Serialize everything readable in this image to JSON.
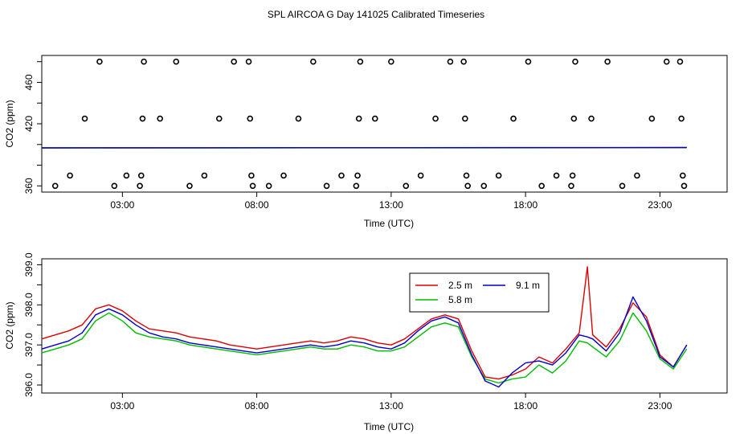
{
  "title": "SPL AIRCOA G  Day 141025  Calibrated Timeseries",
  "chart_data": [
    {
      "type": "scatter+line",
      "xlabel": "Time (UTC)",
      "ylabel": "CO2 (ppm)",
      "xlim": [
        0.0,
        25.5
      ],
      "ylim": [
        354,
        486
      ],
      "xticks": [
        3,
        8,
        13,
        18,
        23
      ],
      "xtick_labels": [
        "03:00",
        "08:00",
        "13:00",
        "18:00",
        "23:00"
      ],
      "yticks": [
        360,
        380,
        400,
        420,
        440,
        460,
        480
      ],
      "ytick_labels": [
        "360",
        "",
        "",
        "420",
        "",
        "460",
        ""
      ],
      "points": [
        {
          "x": 0.5,
          "y": 360
        },
        {
          "x": 1.05,
          "y": 370
        },
        {
          "x": 1.6,
          "y": 425
        },
        {
          "x": 2.15,
          "y": 480
        },
        {
          "x": 2.7,
          "y": 360
        },
        {
          "x": 3.15,
          "y": 370
        },
        {
          "x": 3.65,
          "y": 360
        },
        {
          "x": 3.7,
          "y": 370
        },
        {
          "x": 3.75,
          "y": 425
        },
        {
          "x": 3.8,
          "y": 480
        },
        {
          "x": 4.4,
          "y": 425
        },
        {
          "x": 5.0,
          "y": 480
        },
        {
          "x": 5.5,
          "y": 360
        },
        {
          "x": 6.05,
          "y": 370
        },
        {
          "x": 6.6,
          "y": 425
        },
        {
          "x": 7.15,
          "y": 480
        },
        {
          "x": 7.7,
          "y": 480
        },
        {
          "x": 7.75,
          "y": 425
        },
        {
          "x": 7.8,
          "y": 370
        },
        {
          "x": 7.85,
          "y": 360
        },
        {
          "x": 8.45,
          "y": 360
        },
        {
          "x": 9.0,
          "y": 370
        },
        {
          "x": 9.55,
          "y": 425
        },
        {
          "x": 10.1,
          "y": 480
        },
        {
          "x": 10.6,
          "y": 360
        },
        {
          "x": 11.15,
          "y": 370
        },
        {
          "x": 11.7,
          "y": 360
        },
        {
          "x": 11.75,
          "y": 370
        },
        {
          "x": 11.8,
          "y": 425
        },
        {
          "x": 11.85,
          "y": 480
        },
        {
          "x": 12.4,
          "y": 425
        },
        {
          "x": 13.0,
          "y": 480
        },
        {
          "x": 13.55,
          "y": 360
        },
        {
          "x": 14.1,
          "y": 370
        },
        {
          "x": 14.65,
          "y": 425
        },
        {
          "x": 15.2,
          "y": 480
        },
        {
          "x": 15.7,
          "y": 480
        },
        {
          "x": 15.75,
          "y": 425
        },
        {
          "x": 15.8,
          "y": 370
        },
        {
          "x": 15.85,
          "y": 360
        },
        {
          "x": 16.45,
          "y": 360
        },
        {
          "x": 17.0,
          "y": 370
        },
        {
          "x": 17.55,
          "y": 425
        },
        {
          "x": 18.1,
          "y": 480
        },
        {
          "x": 18.6,
          "y": 360
        },
        {
          "x": 19.15,
          "y": 370
        },
        {
          "x": 19.7,
          "y": 360
        },
        {
          "x": 19.75,
          "y": 370
        },
        {
          "x": 19.8,
          "y": 425
        },
        {
          "x": 19.85,
          "y": 480
        },
        {
          "x": 20.45,
          "y": 425
        },
        {
          "x": 21.05,
          "y": 480
        },
        {
          "x": 21.6,
          "y": 360
        },
        {
          "x": 22.15,
          "y": 370
        },
        {
          "x": 22.7,
          "y": 425
        },
        {
          "x": 23.25,
          "y": 480
        },
        {
          "x": 23.75,
          "y": 480
        },
        {
          "x": 23.8,
          "y": 425
        },
        {
          "x": 23.85,
          "y": 370
        },
        {
          "x": 23.9,
          "y": 360
        }
      ],
      "series": [
        {
          "name": "2.5 m",
          "color": "#dd0000",
          "x": [
            0.0,
            24.0
          ],
          "y": [
            396.8,
            397.1
          ]
        },
        {
          "name": "5.8 m",
          "color": "#00bb00",
          "x": [
            0.0,
            24.0
          ],
          "y": [
            396.6,
            396.9
          ]
        },
        {
          "name": "9.1 m",
          "color": "#0000cc",
          "x": [
            0.0,
            24.0
          ],
          "y": [
            396.7,
            397.0
          ]
        }
      ]
    },
    {
      "type": "line",
      "xlabel": "Time (UTC)",
      "ylabel": "CO2 (ppm)",
      "xlim": [
        0.0,
        25.5
      ],
      "ylim": [
        395.8,
        399.15
      ],
      "xticks": [
        3,
        8,
        13,
        18,
        23
      ],
      "xtick_labels": [
        "03:00",
        "08:00",
        "13:00",
        "18:00",
        "23:00"
      ],
      "yticks": [
        396.0,
        396.5,
        397.0,
        397.5,
        398.0,
        398.5,
        399.0
      ],
      "ytick_labels": [
        "396.0",
        "",
        "397.0",
        "",
        "398.0",
        "",
        "399.0"
      ],
      "legend": {
        "entries": [
          {
            "label": "2.5 m",
            "color": "#dd0000"
          },
          {
            "label": "5.8 m",
            "color": "#00bb00"
          },
          {
            "label": "9.1 m",
            "color": "#0000cc"
          }
        ]
      },
      "x": [
        0.0,
        0.5,
        1.0,
        1.5,
        2.0,
        2.5,
        3.0,
        3.5,
        4.0,
        4.5,
        5.0,
        5.5,
        6.0,
        6.5,
        7.0,
        7.5,
        8.0,
        8.5,
        9.0,
        9.5,
        10.0,
        10.5,
        11.0,
        11.5,
        12.0,
        12.5,
        13.0,
        13.5,
        14.0,
        14.5,
        15.0,
        15.5,
        16.0,
        16.5,
        17.0,
        17.5,
        18.0,
        18.5,
        19.0,
        19.5,
        20.0,
        20.3,
        20.5,
        21.0,
        21.5,
        22.0,
        22.5,
        23.0,
        23.5,
        24.0
      ],
      "series": [
        {
          "name": "2.5 m",
          "color": "#dd0000",
          "values": [
            397.15,
            397.25,
            397.35,
            397.5,
            397.9,
            398.0,
            397.85,
            397.6,
            397.4,
            397.35,
            397.3,
            397.2,
            397.15,
            397.1,
            397.0,
            396.95,
            396.9,
            396.95,
            397.0,
            397.05,
            397.1,
            397.05,
            397.1,
            397.2,
            397.15,
            397.05,
            397.0,
            397.15,
            397.4,
            397.65,
            397.75,
            397.65,
            396.85,
            396.2,
            396.15,
            396.25,
            396.4,
            396.7,
            396.55,
            396.9,
            397.3,
            398.95,
            397.25,
            396.95,
            397.4,
            398.05,
            397.7,
            396.75,
            396.45,
            397.0
          ]
        },
        {
          "name": "5.8 m",
          "color": "#00bb00",
          "values": [
            396.8,
            396.9,
            397.0,
            397.15,
            397.6,
            397.8,
            397.6,
            397.3,
            397.2,
            397.15,
            397.1,
            397.0,
            396.95,
            396.9,
            396.85,
            396.8,
            396.75,
            396.8,
            396.85,
            396.9,
            396.95,
            396.9,
            396.9,
            397.0,
            396.95,
            396.85,
            396.85,
            396.95,
            397.2,
            397.45,
            397.55,
            397.45,
            396.7,
            396.15,
            396.05,
            396.15,
            396.2,
            396.5,
            396.3,
            396.6,
            397.1,
            397.05,
            396.95,
            396.7,
            397.1,
            397.8,
            397.35,
            396.65,
            396.4,
            396.9
          ]
        },
        {
          "name": "9.1 m",
          "color": "#0000cc",
          "values": [
            396.9,
            397.0,
            397.1,
            397.3,
            397.75,
            397.9,
            397.75,
            397.5,
            397.3,
            397.2,
            397.15,
            397.05,
            397.0,
            396.95,
            396.9,
            396.85,
            396.8,
            396.85,
            396.9,
            396.95,
            397.0,
            396.95,
            397.0,
            397.1,
            397.05,
            396.95,
            396.9,
            397.05,
            397.35,
            397.6,
            397.7,
            397.55,
            396.75,
            396.1,
            395.95,
            396.3,
            396.55,
            396.6,
            396.5,
            396.8,
            397.25,
            397.2,
            397.15,
            396.85,
            397.3,
            398.2,
            397.6,
            396.7,
            396.45,
            397.0
          ]
        }
      ]
    }
  ]
}
